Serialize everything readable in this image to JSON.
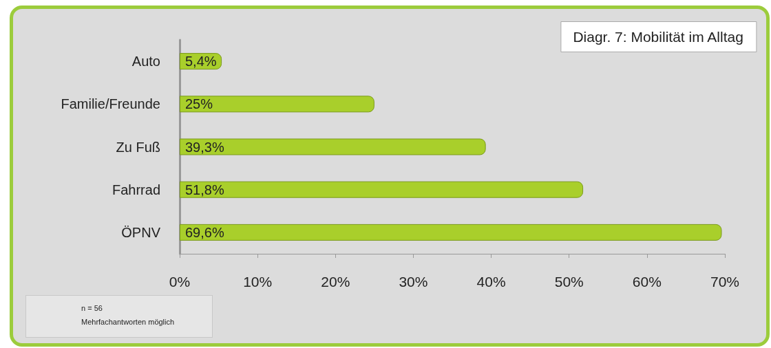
{
  "chart_data": {
    "type": "bar",
    "orientation": "horizontal",
    "title": "Diagr. 7: Mobilität im Alltag",
    "categories": [
      "Auto",
      "Familie/Freunde",
      "Zu Fuß",
      "Fahrrad",
      "ÖPNV"
    ],
    "values": [
      5.4,
      25,
      39.3,
      51.8,
      69.6
    ],
    "value_labels": [
      "5,4%",
      "25%",
      "39,3%",
      "51,8%",
      "69,6%"
    ],
    "color": "#a9cf2b",
    "xlim": [
      0,
      70
    ],
    "xticks": [
      {
        "value": 0,
        "label": "0%"
      },
      {
        "value": 10,
        "label": "10%"
      },
      {
        "value": 20,
        "label": "20%"
      },
      {
        "value": 30,
        "label": "30%"
      },
      {
        "value": 40,
        "label": "40%"
      },
      {
        "value": 50,
        "label": "50%"
      },
      {
        "value": 60,
        "label": "60%"
      },
      {
        "value": 70,
        "label": "70%"
      }
    ],
    "grid": false,
    "annotations": [
      "n = 56",
      "Mehrfachantworten möglich"
    ]
  }
}
